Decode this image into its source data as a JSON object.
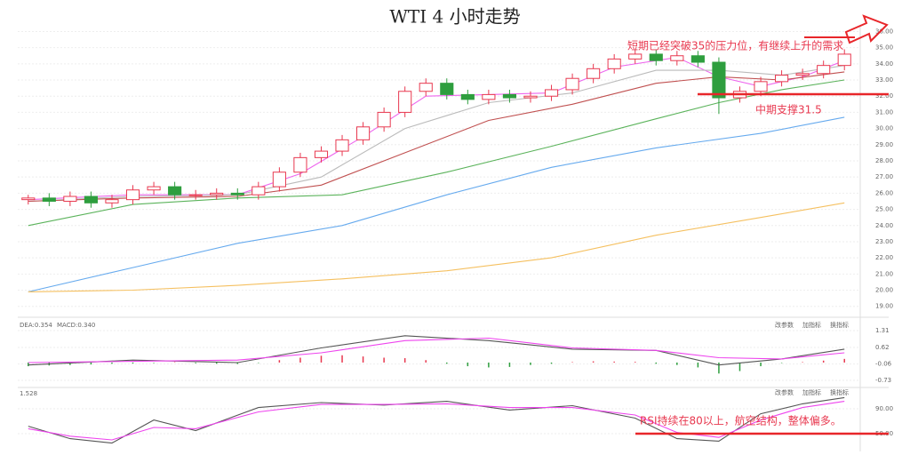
{
  "title": "WTI 4 小时走势",
  "buttons": [
    "改参数",
    "加指标",
    "换指标"
  ],
  "annotations": [
    "短期已经突破35的压力位，有继续上升的需求",
    "中期支撑31.5",
    "RSI持续在80以上，航空结构，整体偏多。"
  ],
  "chart_data": [
    {
      "type": "candlestick",
      "up_color": "#e8384f",
      "down_color": "#2e9e3e",
      "open": [
        25.6,
        25.7,
        25.5,
        25.8,
        25.4,
        25.6,
        26.2,
        26.4,
        25.9,
        25.9,
        26.0,
        25.9,
        26.4,
        27.3,
        28.2,
        28.6,
        29.3,
        30.1,
        31.0,
        32.3,
        32.8,
        32.1,
        31.8,
        32.1,
        31.9,
        32.0,
        32.4,
        33.1,
        33.7,
        34.3,
        34.6,
        34.2,
        34.5,
        34.1,
        31.9,
        32.3,
        32.9,
        33.3,
        33.4,
        33.9
      ],
      "high": [
        25.9,
        26.0,
        26.1,
        26.1,
        25.9,
        26.5,
        26.7,
        26.7,
        26.2,
        26.3,
        26.3,
        26.7,
        27.6,
        28.5,
        28.9,
        29.6,
        30.4,
        31.3,
        32.6,
        33.1,
        33.1,
        32.4,
        32.4,
        32.4,
        32.3,
        32.7,
        33.4,
        34.0,
        34.6,
        34.9,
        34.9,
        34.8,
        34.8,
        34.4,
        32.6,
        33.2,
        33.6,
        33.7,
        34.2,
        34.9
      ],
      "low": [
        25.3,
        25.2,
        25.2,
        25.1,
        25.1,
        25.3,
        25.9,
        25.6,
        25.6,
        25.6,
        25.6,
        25.6,
        26.1,
        27.0,
        27.9,
        28.3,
        29.0,
        29.8,
        30.7,
        32.0,
        31.8,
        31.5,
        31.5,
        31.6,
        31.6,
        31.7,
        32.1,
        32.8,
        33.4,
        34.0,
        33.9,
        33.9,
        33.8,
        30.9,
        31.6,
        32.0,
        32.6,
        33.0,
        33.1,
        33.6
      ],
      "close": [
        25.7,
        25.5,
        25.8,
        25.4,
        25.6,
        26.2,
        26.4,
        25.9,
        25.9,
        26.0,
        25.9,
        26.4,
        27.3,
        28.2,
        28.6,
        29.3,
        30.1,
        31.0,
        32.3,
        32.8,
        32.1,
        31.8,
        32.1,
        31.9,
        32.0,
        32.4,
        33.1,
        33.7,
        34.3,
        34.6,
        34.2,
        34.5,
        34.1,
        31.9,
        32.3,
        32.9,
        33.3,
        33.4,
        33.9,
        34.6
      ],
      "series": [
        {
          "color": "#ee66ee",
          "x": [
            0,
            5,
            10,
            13,
            16,
            19,
            22,
            25,
            28,
            31,
            33,
            35,
            37,
            39
          ],
          "values": [
            25.6,
            25.9,
            25.9,
            27.2,
            29.5,
            32.0,
            32.1,
            32.2,
            33.8,
            34.4,
            33.2,
            32.6,
            33.2,
            34.2
          ]
        },
        {
          "color": "#bbbbbb",
          "x": [
            0,
            5,
            10,
            14,
            18,
            22,
            26,
            30,
            33,
            36,
            39
          ],
          "values": [
            25.5,
            25.8,
            25.9,
            27.0,
            30.0,
            31.6,
            32.2,
            33.6,
            33.6,
            33.3,
            33.9
          ]
        },
        {
          "color": "#c05050",
          "x": [
            0,
            5,
            10,
            14,
            18,
            22,
            26,
            30,
            33,
            36,
            39
          ],
          "values": [
            25.5,
            25.7,
            25.8,
            26.5,
            28.5,
            30.5,
            31.5,
            32.8,
            33.2,
            33.0,
            33.5
          ]
        },
        {
          "color": "#5bb35b",
          "x": [
            0,
            5,
            10,
            15,
            20,
            25,
            30,
            33,
            36,
            39
          ],
          "values": [
            24.0,
            25.3,
            25.7,
            25.9,
            27.3,
            28.9,
            30.6,
            31.6,
            32.4,
            33.0
          ]
        },
        {
          "color": "#66aaee",
          "x": [
            0,
            5,
            10,
            15,
            20,
            25,
            30,
            35,
            39
          ],
          "values": [
            19.9,
            21.4,
            22.9,
            24.0,
            25.9,
            27.6,
            28.8,
            29.7,
            30.7
          ]
        },
        {
          "color": "#f5c060",
          "x": [
            0,
            5,
            10,
            15,
            20,
            25,
            30,
            35,
            39
          ],
          "values": [
            19.9,
            20.0,
            20.3,
            20.7,
            21.2,
            22.0,
            23.4,
            24.5,
            25.4
          ]
        }
      ],
      "ylim": [
        18.6,
        36.3
      ],
      "yticks": [
        {
          "value": 19,
          "label": "19.00"
        },
        {
          "value": 20,
          "label": "20.00"
        },
        {
          "value": 21,
          "label": "21.00"
        },
        {
          "value": 22,
          "label": "22.00"
        },
        {
          "value": 23,
          "label": "23.00"
        },
        {
          "value": 24,
          "label": "24.00"
        },
        {
          "value": 25,
          "label": "25.00"
        },
        {
          "value": 26,
          "label": "26.00"
        },
        {
          "value": 27,
          "label": "27.00"
        },
        {
          "value": 28,
          "label": "28.00"
        },
        {
          "value": 29,
          "label": "29.00"
        },
        {
          "value": 30,
          "label": "30.00"
        },
        {
          "value": 31,
          "label": "31.00"
        },
        {
          "value": 32,
          "label": "32.00"
        },
        {
          "value": 33,
          "label": "33.00"
        },
        {
          "value": 34,
          "label": "34.00"
        },
        {
          "value": 35,
          "label": "35.00"
        },
        {
          "value": 36,
          "label": "36.00"
        }
      ]
    },
    {
      "type": "macd",
      "legend": [
        "DEA:0.354",
        "MACD:0.340"
      ],
      "up_color": "#e8384f",
      "down_color": "#2e9e3e",
      "values": [
        -0.15,
        -0.12,
        -0.1,
        -0.08,
        -0.05,
        -0.04,
        -0.02,
        0.02,
        -0.03,
        -0.05,
        -0.06,
        -0.02,
        0.1,
        0.2,
        0.28,
        0.3,
        0.25,
        0.2,
        0.18,
        0.1,
        -0.05,
        -0.15,
        -0.2,
        -0.18,
        -0.1,
        -0.05,
        0.02,
        0.05,
        0.04,
        0.03,
        -0.05,
        -0.1,
        -0.2,
        -0.45,
        -0.35,
        -0.15,
        -0.02,
        0.02,
        0.08,
        0.15
      ],
      "series": [
        {
          "color": "#555555",
          "x": [
            0,
            5,
            10,
            14,
            18,
            22,
            26,
            30,
            33,
            36,
            39
          ],
          "values": [
            -0.1,
            0.1,
            0.0,
            0.6,
            1.1,
            0.9,
            0.55,
            0.5,
            -0.1,
            0.15,
            0.55
          ]
        },
        {
          "color": "#ee44ee",
          "x": [
            0,
            5,
            10,
            14,
            18,
            22,
            26,
            30,
            33,
            36,
            39
          ],
          "values": [
            0.0,
            0.05,
            0.1,
            0.4,
            0.9,
            1.0,
            0.6,
            0.5,
            0.2,
            0.15,
            0.4
          ]
        }
      ],
      "ylim": [
        -0.84,
        1.64
      ],
      "yticks": [
        1.31,
        0.62,
        -0.06,
        -0.73
      ]
    },
    {
      "type": "line",
      "legend": [
        "1.528"
      ],
      "series": [
        {
          "color": "#555555",
          "x": [
            0,
            2,
            4,
            6,
            8,
            11,
            14,
            17,
            20,
            23,
            26,
            29,
            31,
            33,
            35,
            37,
            39
          ],
          "values": [
            62,
            42,
            35,
            72,
            55,
            92,
            100,
            96,
            102,
            88,
            95,
            75,
            42,
            38,
            82,
            98,
            108
          ]
        },
        {
          "color": "#ee44ee",
          "x": [
            0,
            2,
            4,
            6,
            8,
            11,
            14,
            17,
            20,
            23,
            26,
            29,
            31,
            33,
            35,
            37,
            39
          ],
          "values": [
            58,
            46,
            40,
            60,
            58,
            85,
            97,
            97,
            98,
            92,
            92,
            80,
            52,
            44,
            72,
            92,
            102
          ]
        }
      ],
      "ylim": [
        25.7,
        118.6
      ],
      "yticks": [
        {
          "value": 90,
          "label": "90.00"
        },
        {
          "value": 50,
          "label": "50.00"
        }
      ]
    }
  ]
}
